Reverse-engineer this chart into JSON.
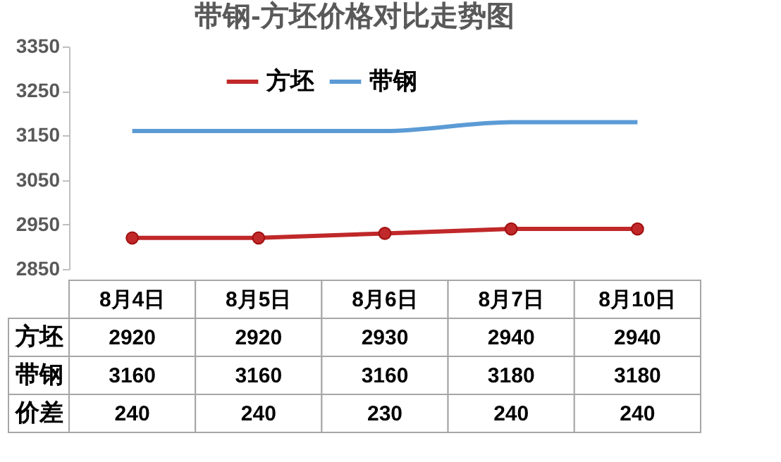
{
  "chart_data": {
    "type": "line",
    "title": "带钢-方坯价格对比走势图",
    "categories": [
      "8月4日",
      "8月5日",
      "8月6日",
      "8月7日",
      "8月10日"
    ],
    "series": [
      {
        "name": "方坯",
        "color": "#c0282a",
        "marker": "circle",
        "values": [
          2920,
          2920,
          2930,
          2940,
          2940
        ]
      },
      {
        "name": "带钢",
        "color": "#5b9bd5",
        "marker": "none",
        "values": [
          3160,
          3160,
          3160,
          3180,
          3180
        ]
      }
    ],
    "annotations": [
      "价差",
      "240",
      "240",
      "230",
      "240",
      "240"
    ],
    "ylim": [
      2850,
      3350
    ],
    "yticks": [
      2850,
      2950,
      3050,
      3150,
      3250,
      3350
    ],
    "grid": false,
    "legend": "top left",
    "data_labels": true
  }
}
